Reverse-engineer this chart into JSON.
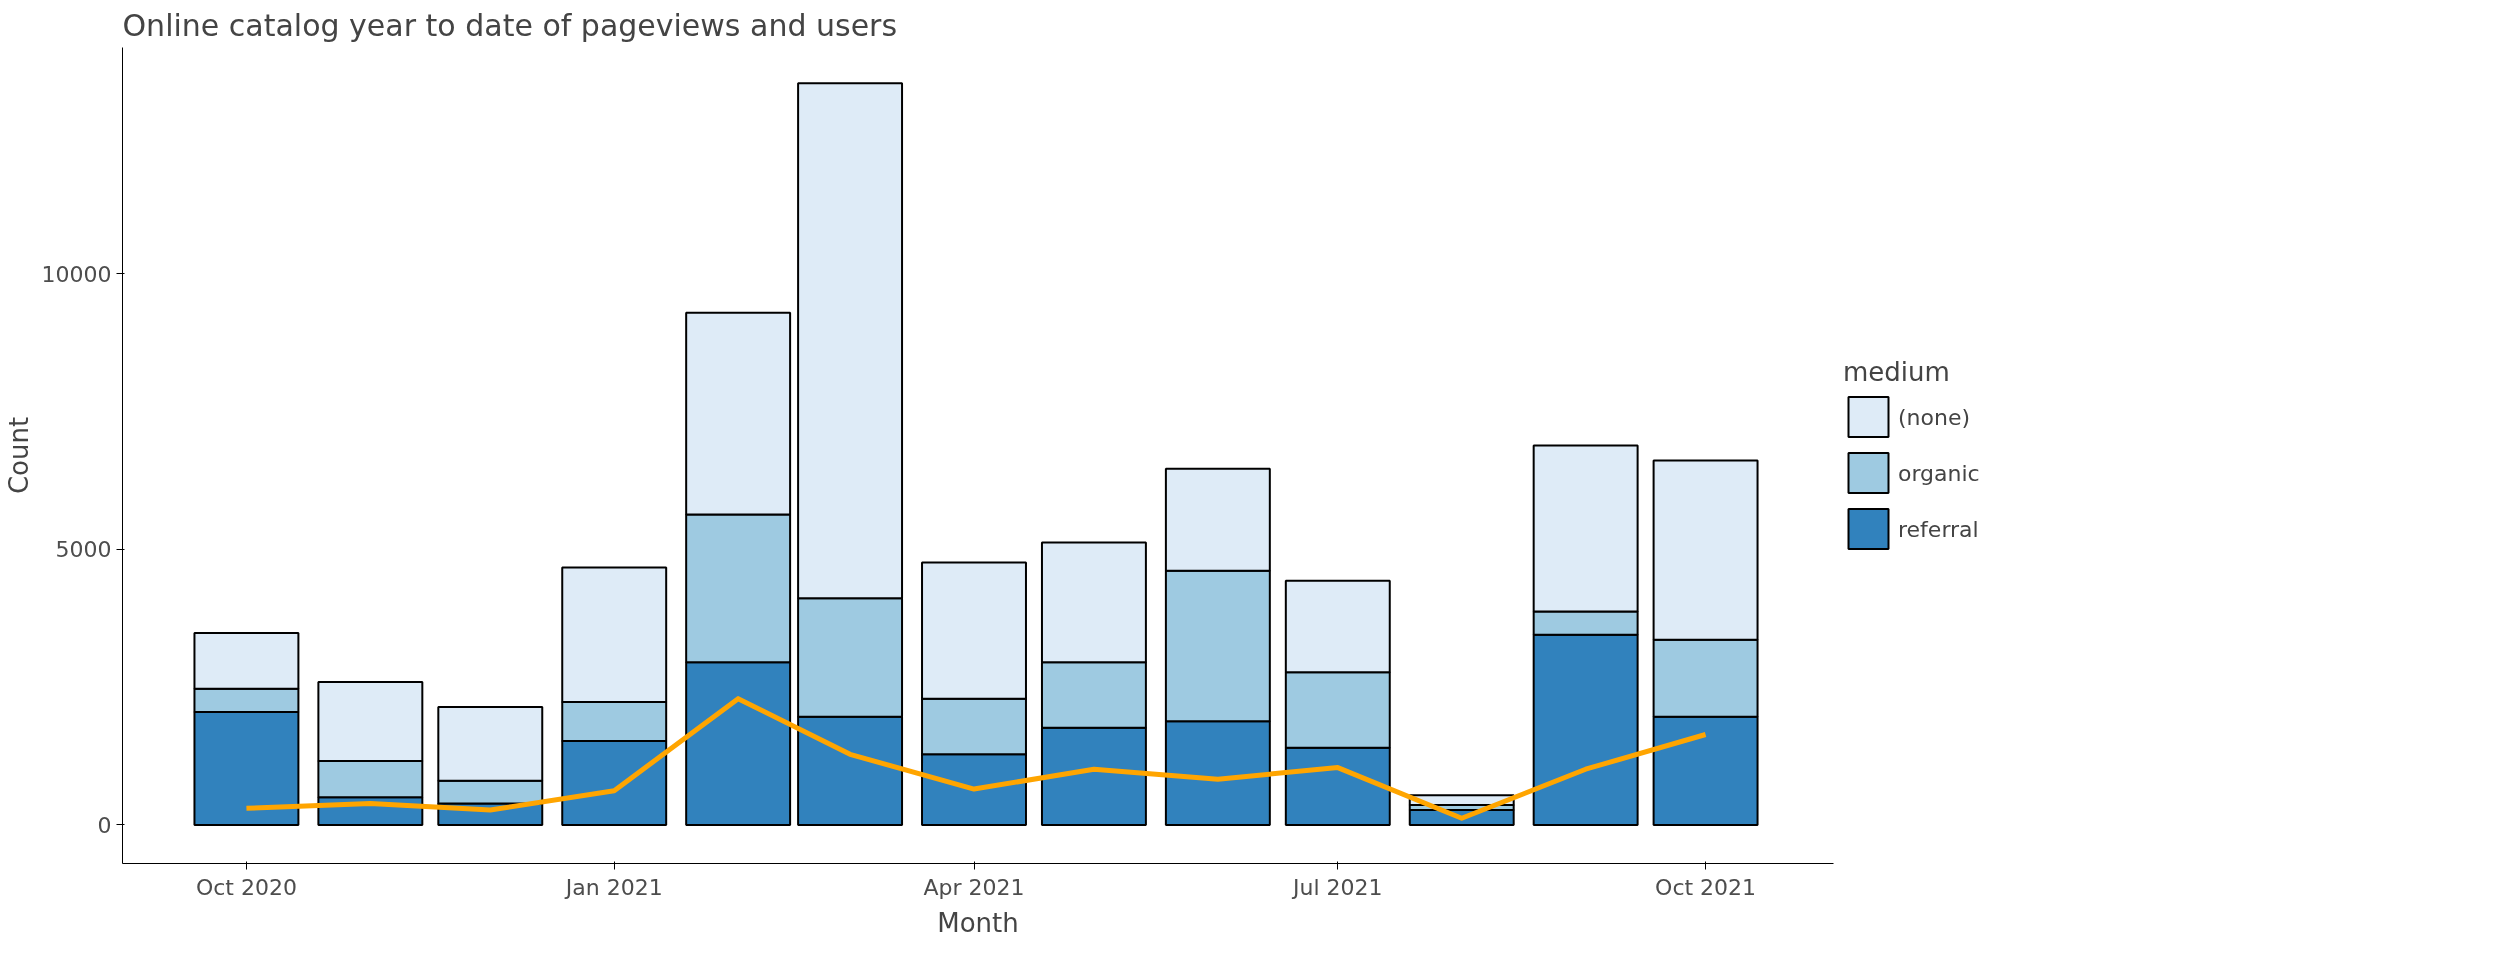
{
  "chart_data": {
    "type": "bar",
    "title": "Online catalog year to date of pageviews and users",
    "xlabel": "Month",
    "ylabel": "Count",
    "legend_title": "medium",
    "legend": "right",
    "grid": false,
    "stacked": true,
    "x": [
      "2020-10-01",
      "2020-11-01",
      "2020-12-01",
      "2021-01-01",
      "2021-02-01",
      "2021-03-01",
      "2021-04-01",
      "2021-05-01",
      "2021-06-01",
      "2021-07-01",
      "2021-08-01",
      "2021-09-01",
      "2021-10-01"
    ],
    "xlim": [
      "2020-08-31",
      "2021-11-02"
    ],
    "xticks": [
      {
        "value": "2020-10-01",
        "label": "Oct 2020"
      },
      {
        "value": "2021-01-01",
        "label": "Jan 2021"
      },
      {
        "value": "2021-04-01",
        "label": "Apr 2021"
      },
      {
        "value": "2021-07-01",
        "label": "Jul 2021"
      },
      {
        "value": "2021-10-01",
        "label": "Oct 2021"
      }
    ],
    "ylim": [
      -700,
      14100
    ],
    "yticks": [
      0,
      5000,
      10000
    ],
    "series": [
      {
        "name": "referral",
        "color": "#3182bd",
        "values": [
          2050,
          500,
          390,
          1520,
          2950,
          1960,
          1280,
          1760,
          1880,
          1400,
          270,
          3450,
          1960
        ]
      },
      {
        "name": "organic",
        "color": "#9ecae1",
        "values": [
          420,
          660,
          410,
          710,
          2680,
          2150,
          1010,
          1190,
          2730,
          1370,
          90,
          420,
          1400
        ]
      },
      {
        "name": "(none)",
        "color": "#deebf7",
        "values": [
          1010,
          1430,
          1340,
          2440,
          3660,
          9340,
          2470,
          2170,
          1850,
          1660,
          180,
          3010,
          3250
        ]
      },
      {
        "type": "line",
        "color": "#ffa500",
        "values": [
          300,
          390,
          270,
          620,
          2290,
          1280,
          650,
          1010,
          830,
          1040,
          120,
          1010,
          1640
        ]
      }
    ]
  }
}
